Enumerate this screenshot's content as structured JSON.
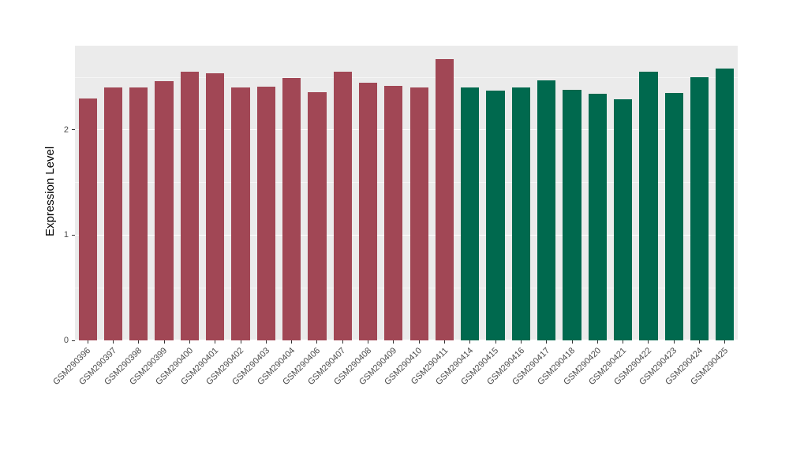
{
  "chart_data": {
    "type": "bar",
    "title": "",
    "xlabel": "",
    "ylabel": "Expression Level",
    "ylim": [
      0,
      2.8
    ],
    "yticks": [
      0,
      1,
      2
    ],
    "grid": "horizontal white major and minor gridlines on grey panel",
    "legend": "none",
    "panel_background": "#EBEBEB",
    "grid_color": "#FFFFFF",
    "tick_label_color": "#4D4D4D",
    "axis_title_color": "#000000",
    "x_label_angle_degrees": 45,
    "categories": [
      "GSM290396",
      "GSM290397",
      "GSM290398",
      "GSM290399",
      "GSM290400",
      "GSM290401",
      "GSM290402",
      "GSM290403",
      "GSM290404",
      "GSM290406",
      "GSM290407",
      "GSM290408",
      "GSM290409",
      "GSM290410",
      "GSM290411",
      "GSM290414",
      "GSM290415",
      "GSM290416",
      "GSM290417",
      "GSM290418",
      "GSM290420",
      "GSM290421",
      "GSM290422",
      "GSM290423",
      "GSM290424",
      "GSM290425"
    ],
    "values": [
      2.3,
      2.4,
      2.4,
      2.46,
      2.55,
      2.54,
      2.4,
      2.41,
      2.49,
      2.36,
      2.55,
      2.45,
      2.42,
      2.4,
      2.67,
      2.4,
      2.37,
      2.4,
      2.47,
      2.38,
      2.34,
      2.29,
      2.55,
      2.35,
      2.5,
      2.58
    ],
    "series_groups": [
      {
        "name": "left-group-maroon",
        "color": "#A14755",
        "count": 15
      },
      {
        "name": "right-group-green",
        "color": "#00694E",
        "count": 11
      }
    ]
  }
}
